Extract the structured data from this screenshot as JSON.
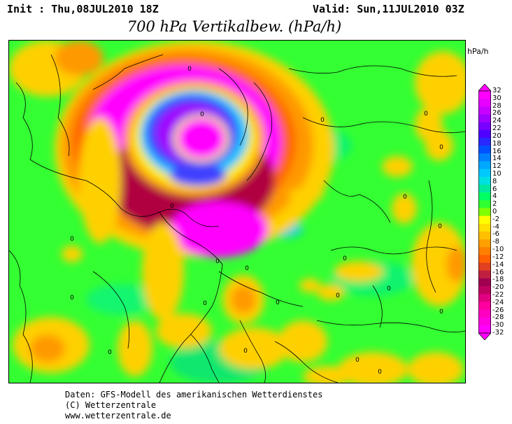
{
  "header": {
    "init": "Init : Thu,08JUL2010 18Z",
    "valid": "Valid: Sun,11JUL2010 03Z",
    "title": "700 hPa Vertikalbew. (hPa/h)"
  },
  "legend": {
    "unit": "hPa/h",
    "ticks": [
      "32",
      "30",
      "28",
      "26",
      "24",
      "22",
      "20",
      "18",
      "16",
      "14",
      "12",
      "10",
      "8",
      "6",
      "4",
      "2",
      "0",
      "-2",
      "-4",
      "-6",
      "-8",
      "-10",
      "-12",
      "-14",
      "-16",
      "-18",
      "-20",
      "-22",
      "-24",
      "-26",
      "-28",
      "-30",
      "-32"
    ],
    "colors": [
      "#ff00ff",
      "#e600ff",
      "#c800ff",
      "#a000ff",
      "#7800ff",
      "#5000ff",
      "#2828ff",
      "#0050ff",
      "#0080ff",
      "#00a8ff",
      "#00c8ff",
      "#00e0e0",
      "#00e8a0",
      "#00ff64",
      "#30ff30",
      "#80ff00",
      "#ffff00",
      "#ffe000",
      "#ffc000",
      "#ffa000",
      "#ff8000",
      "#ff6000",
      "#e04020",
      "#c02040",
      "#a00050",
      "#c00060",
      "#e00080",
      "#ff00a0",
      "#ff00c0",
      "#ff00e0",
      "#ff00ff"
    ]
  },
  "map": {
    "contour_label": "0",
    "colors": {
      "background": "#33ff33",
      "negative_weak": "#ffd000",
      "negative_mid": "#ff9900",
      "negative_strong": "#b00040",
      "negative_extreme": "#ff00ff",
      "positive_weak": "#00ff99",
      "positive_mid": "#00c8ff",
      "positive_strong": "#4040ff",
      "positive_extreme": "#a000ff"
    }
  },
  "footer": {
    "line1": "Daten: GFS-Modell des amerikanischen Wetterdienstes",
    "line2": "(C) Wetterzentrale",
    "line3": "www.wetterzentrale.de"
  }
}
